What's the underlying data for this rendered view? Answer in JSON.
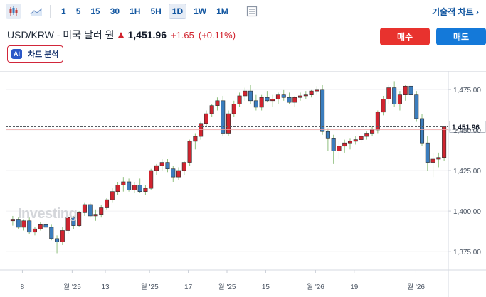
{
  "toolbar": {
    "timeframes": [
      "1",
      "5",
      "15",
      "30",
      "1H",
      "5H",
      "1D",
      "1W",
      "1M"
    ],
    "active_timeframe": "1D",
    "technical_chart_label": "기술적 차트 ›"
  },
  "header": {
    "pair_label": "USD/KRW - 미국 달러 원",
    "price": "1,451.96",
    "change": "+1.65",
    "change_pct": "(+0.11%)"
  },
  "buttons": {
    "buy": "매수",
    "sell": "매도"
  },
  "ai_chip": {
    "badge": "AI",
    "label": "차트 분석"
  },
  "watermark": "Investing",
  "colors": {
    "up": "#d1242f",
    "down": "#3b7dbd",
    "accent": "#1256a0"
  },
  "chart_data": {
    "type": "candlestick",
    "x_tick_labels": [
      "8",
      "월 '25",
      "13",
      "월 '25",
      "17",
      "월 '25",
      "15",
      "월 '26",
      "19",
      "월 '26"
    ],
    "y_tick_labels": [
      "1,475.00",
      "1,450.00",
      "1,425.00",
      "1,400.00",
      "1,375.00"
    ],
    "y_ticks": [
      1475,
      1450,
      1425,
      1400,
      1375
    ],
    "ylim": [
      1365,
      1485
    ],
    "last_price_label": "1,451.96",
    "last_price": 1451.96,
    "previous_close": 1450.31,
    "candles": [
      [
        1394,
        1397,
        1391,
        1395
      ],
      [
        1395,
        1396,
        1389,
        1390
      ],
      [
        1390,
        1395,
        1388,
        1394
      ],
      [
        1394,
        1396,
        1386,
        1387
      ],
      [
        1387,
        1390,
        1385,
        1389
      ],
      [
        1389,
        1393,
        1388,
        1392
      ],
      [
        1392,
        1394,
        1389,
        1390
      ],
      [
        1390,
        1392,
        1382,
        1383
      ],
      [
        1383,
        1385,
        1374,
        1381
      ],
      [
        1381,
        1390,
        1379,
        1388
      ],
      [
        1388,
        1398,
        1386,
        1396
      ],
      [
        1396,
        1397,
        1389,
        1391
      ],
      [
        1391,
        1400,
        1390,
        1399
      ],
      [
        1399,
        1405,
        1397,
        1404
      ],
      [
        1404,
        1405,
        1396,
        1397
      ],
      [
        1397,
        1401,
        1394,
        1398
      ],
      [
        1398,
        1404,
        1396,
        1402
      ],
      [
        1402,
        1408,
        1401,
        1407
      ],
      [
        1407,
        1414,
        1405,
        1412
      ],
      [
        1412,
        1418,
        1410,
        1416
      ],
      [
        1416,
        1421,
        1412,
        1418
      ],
      [
        1418,
        1420,
        1412,
        1413
      ],
      [
        1413,
        1418,
        1411,
        1416
      ],
      [
        1416,
        1420,
        1411,
        1412
      ],
      [
        1412,
        1416,
        1410,
        1414
      ],
      [
        1414,
        1426,
        1413,
        1425
      ],
      [
        1425,
        1429,
        1422,
        1428
      ],
      [
        1428,
        1432,
        1425,
        1430
      ],
      [
        1430,
        1432,
        1424,
        1426
      ],
      [
        1426,
        1428,
        1418,
        1421
      ],
      [
        1421,
        1427,
        1419,
        1425
      ],
      [
        1425,
        1431,
        1422,
        1430
      ],
      [
        1430,
        1444,
        1428,
        1443
      ],
      [
        1443,
        1448,
        1438,
        1446
      ],
      [
        1446,
        1455,
        1444,
        1454
      ],
      [
        1454,
        1462,
        1452,
        1460
      ],
      [
        1460,
        1466,
        1458,
        1465
      ],
      [
        1465,
        1470,
        1462,
        1468
      ],
      [
        1468,
        1471,
        1446,
        1448
      ],
      [
        1448,
        1462,
        1446,
        1460
      ],
      [
        1460,
        1468,
        1458,
        1466
      ],
      [
        1466,
        1473,
        1464,
        1471
      ],
      [
        1471,
        1476,
        1468,
        1474
      ],
      [
        1474,
        1478,
        1466,
        1468
      ],
      [
        1468,
        1472,
        1462,
        1464
      ],
      [
        1464,
        1472,
        1462,
        1470
      ],
      [
        1470,
        1474,
        1467,
        1468
      ],
      [
        1468,
        1472,
        1464,
        1469
      ],
      [
        1469,
        1473,
        1466,
        1472
      ],
      [
        1472,
        1475,
        1468,
        1470
      ],
      [
        1470,
        1473,
        1466,
        1467
      ],
      [
        1467,
        1471,
        1464,
        1470
      ],
      [
        1470,
        1473,
        1468,
        1471
      ],
      [
        1471,
        1474,
        1469,
        1472
      ],
      [
        1472,
        1475,
        1470,
        1474
      ],
      [
        1474,
        1477,
        1472,
        1475
      ],
      [
        1475,
        1478,
        1447,
        1449
      ],
      [
        1449,
        1451,
        1437,
        1445
      ],
      [
        1445,
        1447,
        1429,
        1437
      ],
      [
        1437,
        1443,
        1432,
        1440
      ],
      [
        1440,
        1444,
        1436,
        1442
      ],
      [
        1442,
        1445,
        1438,
        1443
      ],
      [
        1443,
        1446,
        1441,
        1444
      ],
      [
        1444,
        1447,
        1442,
        1446
      ],
      [
        1446,
        1449,
        1444,
        1448
      ],
      [
        1448,
        1452,
        1446,
        1450
      ],
      [
        1450,
        1462,
        1448,
        1461
      ],
      [
        1461,
        1471,
        1459,
        1469
      ],
      [
        1469,
        1478,
        1466,
        1476
      ],
      [
        1476,
        1480,
        1464,
        1466
      ],
      [
        1466,
        1474,
        1462,
        1472
      ],
      [
        1472,
        1478,
        1468,
        1477
      ],
      [
        1477,
        1480,
        1470,
        1472
      ],
      [
        1472,
        1474,
        1455,
        1457
      ],
      [
        1457,
        1460,
        1440,
        1442
      ],
      [
        1442,
        1446,
        1425,
        1430
      ],
      [
        1430,
        1436,
        1421,
        1432
      ],
      [
        1432,
        1436,
        1427,
        1433
      ],
      [
        1433,
        1452,
        1431,
        1451.96
      ]
    ]
  }
}
